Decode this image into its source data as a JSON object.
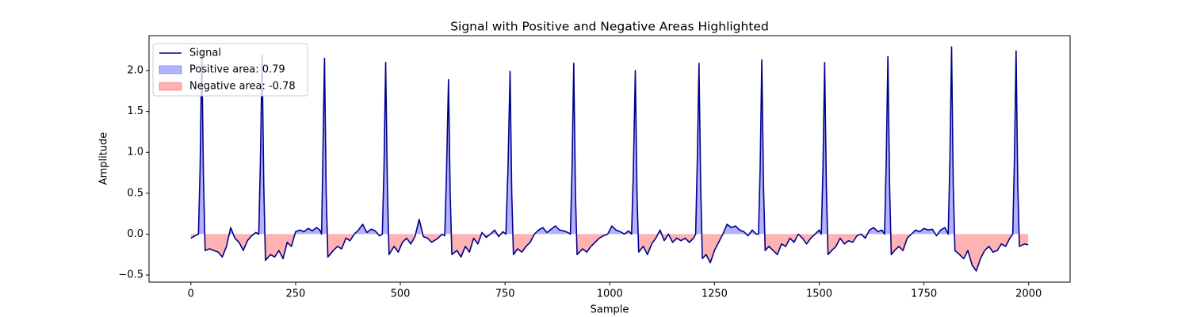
{
  "chart_data": {
    "type": "line",
    "title": "Signal with Positive and Negative Areas Highlighted",
    "xlabel": "Sample",
    "ylabel": "Amplitude",
    "xlim": [
      -99.95,
      2098.95
    ],
    "ylim": [
      -0.587,
      2.427
    ],
    "xticks": [
      0,
      250,
      500,
      750,
      1000,
      1250,
      1500,
      1750,
      2000
    ],
    "yticks": [
      {
        "value": -0.5,
        "label": "−0.5"
      },
      {
        "value": 0,
        "label": "0.0"
      },
      0.5,
      {
        "value": 1,
        "label": "1.0"
      },
      1.5,
      {
        "value": 2,
        "label": "2.0"
      }
    ],
    "legend": "upper left",
    "x": [
      0,
      10,
      18,
      22,
      26,
      30,
      34,
      45,
      55,
      65,
      75,
      85,
      95,
      105,
      115,
      125,
      135,
      145,
      155,
      162,
      166,
      170,
      174,
      178,
      190,
      200,
      210,
      220,
      230,
      240,
      250,
      260,
      270,
      280,
      290,
      300,
      308,
      312,
      315,
      319,
      323,
      327,
      340,
      350,
      360,
      370,
      380,
      390,
      400,
      410,
      420,
      430,
      440,
      450,
      457,
      461,
      465,
      469,
      473,
      485,
      495,
      505,
      515,
      525,
      535,
      545,
      555,
      565,
      575,
      590,
      600,
      606,
      610,
      615,
      619,
      623,
      635,
      645,
      655,
      665,
      675,
      685,
      695,
      705,
      715,
      725,
      735,
      745,
      752,
      757,
      762,
      766,
      770,
      780,
      790,
      800,
      810,
      820,
      830,
      840,
      850,
      860,
      870,
      880,
      890,
      900,
      906,
      910,
      914,
      918,
      922,
      935,
      945,
      955,
      965,
      975,
      985,
      995,
      1005,
      1015,
      1025,
      1035,
      1045,
      1052,
      1056,
      1061,
      1065,
      1069,
      1080,
      1090,
      1100,
      1110,
      1120,
      1130,
      1140,
      1150,
      1160,
      1170,
      1180,
      1190,
      1200,
      1205,
      1209,
      1213,
      1217,
      1221,
      1230,
      1240,
      1250,
      1260,
      1270,
      1280,
      1290,
      1300,
      1310,
      1320,
      1330,
      1340,
      1350,
      1355,
      1359,
      1363,
      1367,
      1371,
      1380,
      1390,
      1400,
      1410,
      1420,
      1430,
      1440,
      1450,
      1460,
      1470,
      1480,
      1490,
      1500,
      1505,
      1509,
      1513,
      1517,
      1521,
      1530,
      1540,
      1550,
      1560,
      1570,
      1580,
      1590,
      1600,
      1610,
      1620,
      1630,
      1640,
      1650,
      1656,
      1660,
      1664,
      1668,
      1672,
      1680,
      1690,
      1700,
      1710,
      1720,
      1730,
      1740,
      1750,
      1760,
      1770,
      1780,
      1790,
      1800,
      1808,
      1812,
      1816,
      1820,
      1824,
      1835,
      1845,
      1855,
      1865,
      1875,
      1885,
      1895,
      1905,
      1915,
      1925,
      1935,
      1945,
      1955,
      1962,
      1966,
      1970,
      1974,
      1978,
      1990,
      1999
    ],
    "series": [
      {
        "name": "Signal",
        "color": "#00008b",
        "values": [
          -0.05,
          -0.02,
          0.0,
          0.8,
          2.25,
          0.7,
          -0.2,
          -0.18,
          -0.2,
          -0.22,
          -0.28,
          -0.15,
          0.08,
          -0.05,
          -0.1,
          -0.2,
          -0.08,
          -0.02,
          0.02,
          0.0,
          0.9,
          2.19,
          0.6,
          -0.32,
          -0.25,
          -0.28,
          -0.2,
          -0.3,
          -0.1,
          -0.15,
          0.03,
          0.05,
          0.03,
          0.07,
          0.04,
          0.08,
          0.05,
          0.0,
          0.9,
          2.15,
          0.5,
          -0.28,
          -0.2,
          -0.15,
          -0.18,
          -0.05,
          -0.08,
          0.0,
          0.05,
          0.12,
          0.02,
          0.06,
          0.04,
          -0.02,
          0.0,
          0.8,
          2.1,
          0.6,
          -0.25,
          -0.15,
          -0.22,
          -0.1,
          -0.05,
          -0.12,
          -0.03,
          0.18,
          -0.03,
          -0.05,
          -0.1,
          -0.05,
          0.0,
          -0.02,
          0.7,
          1.89,
          0.5,
          -0.25,
          -0.2,
          -0.28,
          -0.15,
          -0.22,
          -0.05,
          -0.12,
          0.02,
          -0.04,
          0.0,
          0.05,
          -0.03,
          0.03,
          0.0,
          0.8,
          1.99,
          0.5,
          -0.25,
          -0.18,
          -0.22,
          -0.15,
          -0.1,
          0.0,
          0.05,
          0.08,
          0.02,
          0.06,
          0.1,
          0.05,
          0.04,
          0.02,
          0.0,
          0.8,
          2.09,
          0.5,
          -0.25,
          -0.18,
          -0.22,
          -0.15,
          -0.1,
          -0.05,
          -0.02,
          0.0,
          0.1,
          0.05,
          0.03,
          0.0,
          0.04,
          0.0,
          0.7,
          2.0,
          0.5,
          -0.22,
          -0.15,
          -0.25,
          -0.12,
          -0.05,
          0.05,
          -0.08,
          0.0,
          -0.1,
          -0.05,
          -0.08,
          -0.05,
          -0.1,
          -0.05,
          0.0,
          0.9,
          2.09,
          0.6,
          -0.3,
          -0.25,
          -0.35,
          -0.2,
          -0.1,
          0.0,
          0.12,
          0.08,
          0.1,
          0.05,
          0.03,
          -0.02,
          0.05,
          0.0,
          0.0,
          0.8,
          2.13,
          0.6,
          -0.2,
          -0.15,
          -0.2,
          -0.25,
          -0.12,
          -0.15,
          -0.05,
          -0.1,
          0.0,
          -0.05,
          -0.12,
          -0.05,
          0.0,
          0.05,
          0.0,
          0.8,
          2.1,
          0.6,
          -0.25,
          -0.2,
          -0.15,
          -0.05,
          -0.12,
          -0.08,
          -0.1,
          -0.02,
          0.0,
          -0.05,
          0.05,
          0.08,
          0.03,
          0.05,
          0.0,
          0.9,
          2.17,
          0.6,
          -0.25,
          -0.2,
          -0.15,
          -0.2,
          -0.05,
          0.0,
          0.05,
          0.03,
          0.07,
          0.05,
          0.06,
          -0.02,
          0.05,
          0.08,
          0.0,
          0.9,
          2.29,
          0.6,
          -0.2,
          -0.25,
          -0.3,
          -0.2,
          -0.38,
          -0.45,
          -0.3,
          -0.2,
          -0.15,
          -0.22,
          -0.2,
          -0.12,
          -0.15,
          -0.05,
          0.0,
          0.9,
          2.24,
          0.6,
          -0.15,
          -0.12,
          -0.13
        ]
      }
    ],
    "areas": [
      {
        "name": "Positive area: 0.79",
        "color": "#0000ff",
        "fill_where": "positive"
      },
      {
        "name": "Negative area: -0.78",
        "color": "#ff0000",
        "fill_where": "negative"
      }
    ]
  }
}
